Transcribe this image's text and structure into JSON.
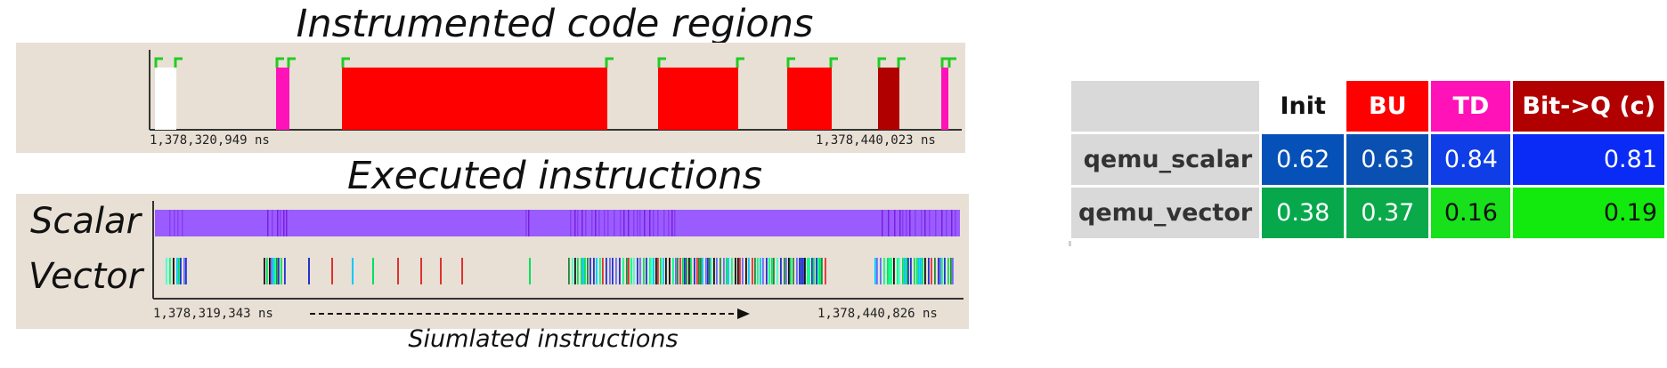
{
  "titles": {
    "regions": "Instrumented code regions",
    "executed": "Executed instructions",
    "simulated": "Siumlated instructions"
  },
  "lanes": {
    "scalar": "Scalar",
    "vector": "Vector"
  },
  "timestamps": {
    "regions_start": "1,378,320,949 ns",
    "regions_end": "1,378,440,023 ns",
    "exec_start": "1,378,319,343 ns",
    "exec_end": "1,378,440,826 ns"
  },
  "colors": {
    "init": "#ffffff",
    "bu": "#ff0000",
    "td": "#ff12b8",
    "bitq": "#b00000",
    "marker": "#22cc22",
    "scalar_lane": "#9b5cff",
    "panel_bg": "#e8e0d5"
  },
  "table": {
    "columns": [
      "Init",
      "BU",
      "TD",
      "Bit->Q (c)"
    ],
    "rows": [
      {
        "label": "qemu_scalar",
        "values": [
          "0.62",
          "0.63",
          "0.84",
          "0.81"
        ]
      },
      {
        "label": "qemu_vector",
        "values": [
          "0.38",
          "0.37",
          "0.16",
          "0.19"
        ]
      }
    ]
  }
}
